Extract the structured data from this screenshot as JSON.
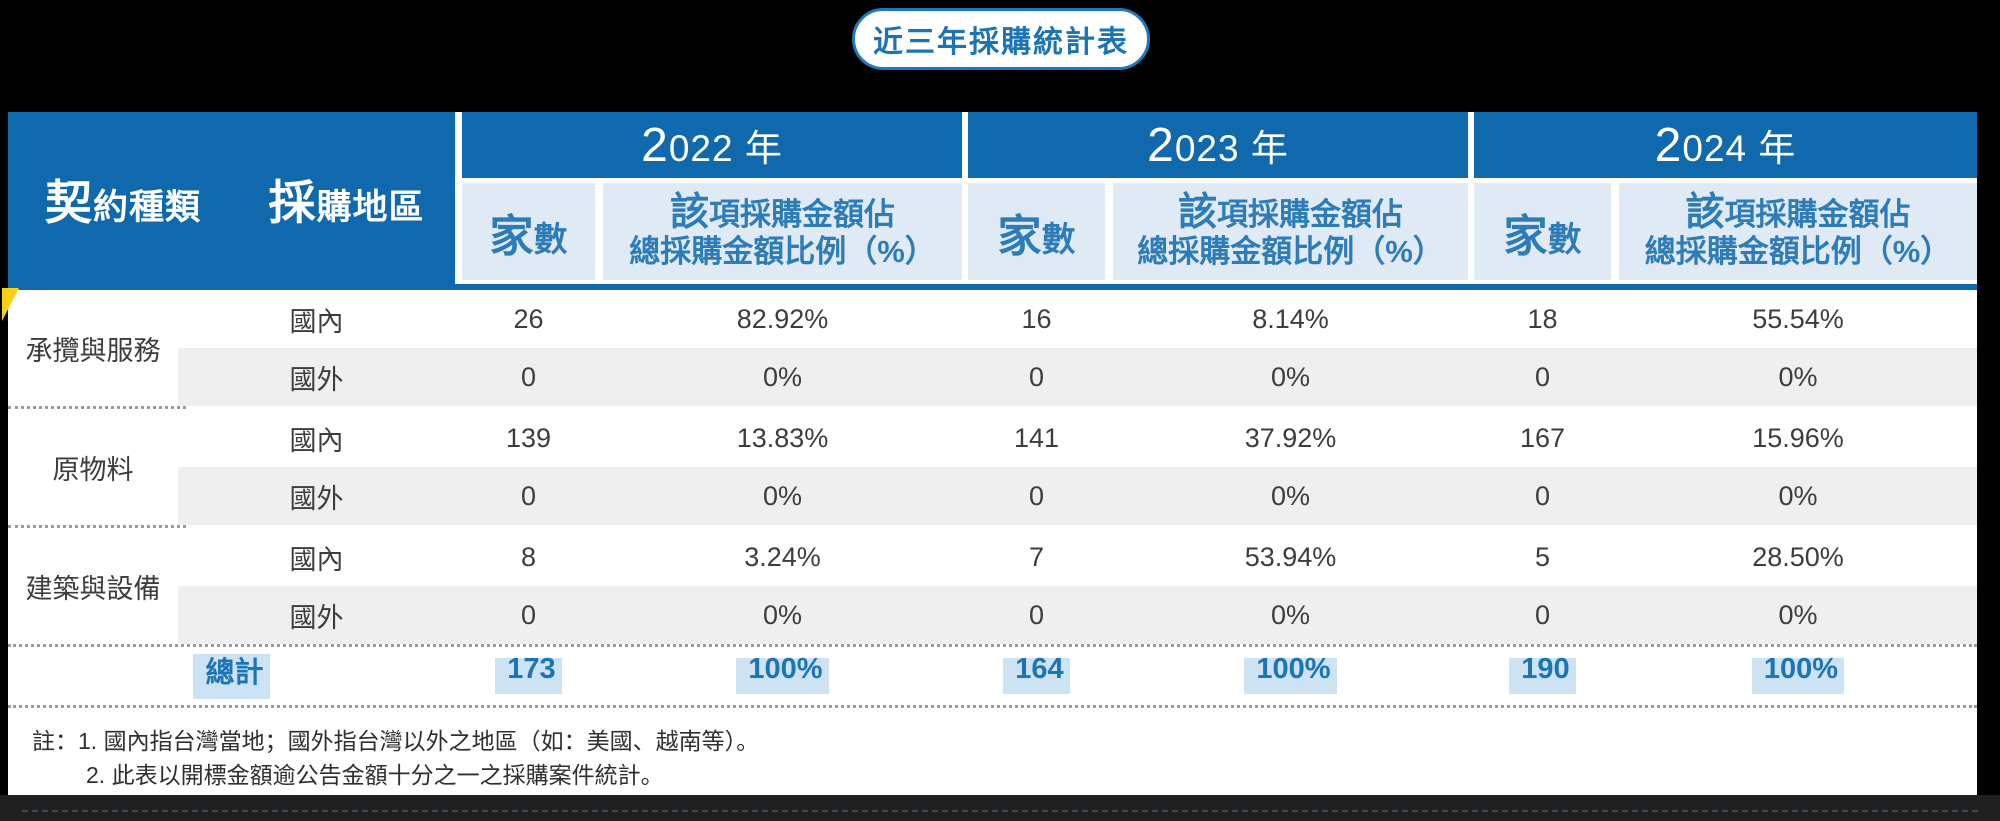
{
  "title": "近三年採購統計表",
  "table": {
    "col_category": "契約種類",
    "col_region": "採購地區",
    "years": [
      "2022 年",
      "2023 年",
      "2024 年"
    ],
    "sub_count": "家數",
    "sub_pct_line1": "該項採購金額佔",
    "sub_pct_line2": "總採購金額比例（%）",
    "groups": [
      {
        "category": "承攬與服務",
        "rows": [
          {
            "region": "國內",
            "values": [
              "26",
              "82.92%",
              "16",
              "8.14%",
              "18",
              "55.54%"
            ]
          },
          {
            "region": "國外",
            "values": [
              "0",
              "0%",
              "0",
              "0%",
              "0",
              "0%"
            ]
          }
        ]
      },
      {
        "category": "原物料",
        "rows": [
          {
            "region": "國內",
            "values": [
              "139",
              "13.83%",
              "141",
              "37.92%",
              "167",
              "15.96%"
            ]
          },
          {
            "region": "國外",
            "values": [
              "0",
              "0%",
              "0",
              "0%",
              "0",
              "0%"
            ]
          }
        ]
      },
      {
        "category": "建築與設備",
        "rows": [
          {
            "region": "國內",
            "values": [
              "8",
              "3.24%",
              "7",
              "53.94%",
              "5",
              "28.50%"
            ]
          },
          {
            "region": "國外",
            "values": [
              "0",
              "0%",
              "0",
              "0%",
              "0",
              "0%"
            ]
          }
        ]
      }
    ],
    "total": {
      "label": "總計",
      "values": [
        "173",
        "100%",
        "164",
        "100%",
        "190",
        "100%"
      ]
    }
  },
  "notes": [
    "註：1. 國內指台灣當地；國外指台灣以外之地區（如：美國、越南等）。",
    "2. 此表以開標金額逾公告金額十分之一之採購案件統計。"
  ],
  "colors": {
    "header_blue": "#1169ad",
    "subheader_bg": "#dfeaf5",
    "subheader_text": "#2e7cb7",
    "gray_row": "#efefef",
    "total_text": "#1b74b6",
    "total_highlight": "#cde2f2",
    "fold_yellow": "#fbd017",
    "pill_border": "#1e7ab8"
  }
}
